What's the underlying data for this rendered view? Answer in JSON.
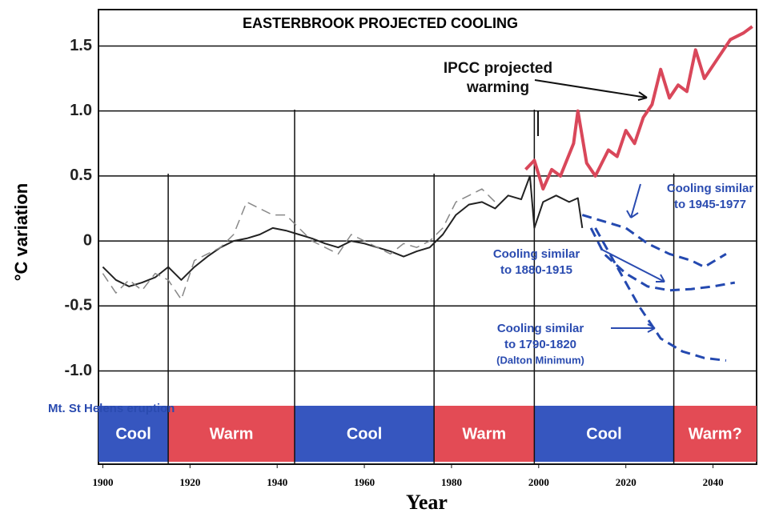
{
  "chart_data": {
    "type": "line",
    "title": "EASTERBROOK PROJECTED COOLING",
    "y_label": "°C variation",
    "x_label": "Year",
    "xlim": [
      1899,
      2050
    ],
    "xticks": [
      1900,
      1920,
      1940,
      1960,
      1980,
      2000,
      2020,
      2040
    ],
    "ylim": [
      -1.2,
      1.78
    ],
    "yticks": [
      1.5,
      1.0,
      0.5,
      0,
      -0.5,
      -1.0
    ],
    "ytick_labels": [
      "1.5",
      "1.0",
      "0.5",
      "0",
      "-0.5",
      "-1.0"
    ],
    "grid": true,
    "series": [
      {
        "color": "#222222",
        "dash": false,
        "width": 2,
        "x": [
          1900,
          1903,
          1906,
          1909,
          1912,
          1915,
          1918,
          1921,
          1924,
          1927,
          1930,
          1933,
          1936,
          1939,
          1942,
          1945,
          1948,
          1951,
          1954,
          1957,
          1960,
          1963,
          1966,
          1969,
          1972,
          1975,
          1978,
          1981,
          1984,
          1987,
          1990,
          1993,
          1996,
          1998,
          1999,
          2001,
          2004,
          2007,
          2009,
          2010
        ],
        "values": [
          -0.2,
          -0.3,
          -0.35,
          -0.32,
          -0.28,
          -0.2,
          -0.3,
          -0.2,
          -0.12,
          -0.05,
          0.0,
          0.02,
          0.05,
          0.1,
          0.08,
          0.05,
          0.02,
          -0.02,
          -0.05,
          0.0,
          -0.02,
          -0.05,
          -0.08,
          -0.12,
          -0.08,
          -0.05,
          0.05,
          0.2,
          0.28,
          0.3,
          0.25,
          0.35,
          0.32,
          0.5,
          0.1,
          0.3,
          0.35,
          0.3,
          0.33,
          0.1
        ]
      },
      {
        "color": "#888888",
        "dash": true,
        "width": 1.5,
        "x": [
          1900,
          1903,
          1906,
          1909,
          1912,
          1915,
          1918,
          1921,
          1924,
          1927,
          1930,
          1933,
          1936,
          1939,
          1942,
          1945,
          1948,
          1951,
          1954,
          1957,
          1960,
          1963,
          1966,
          1969,
          1972,
          1975,
          1978,
          1981,
          1984,
          1987,
          1990
        ],
        "values": [
          -0.25,
          -0.4,
          -0.3,
          -0.38,
          -0.25,
          -0.3,
          -0.45,
          -0.15,
          -0.1,
          -0.05,
          0.05,
          0.3,
          0.25,
          0.2,
          0.2,
          0.1,
          0.0,
          -0.05,
          -0.1,
          0.05,
          0.0,
          -0.05,
          -0.1,
          -0.02,
          -0.05,
          0.0,
          0.1,
          0.3,
          0.35,
          0.4,
          0.3
        ]
      },
      {
        "color": "#d9475a",
        "dash": false,
        "width": 4,
        "x": [
          1997,
          1999,
          2001,
          2003,
          2005,
          2008,
          2009,
          2011,
          2013,
          2016,
          2018,
          2020,
          2022,
          2024,
          2026,
          2028,
          2030,
          2032,
          2034,
          2036,
          2038,
          2041,
          2044,
          2047,
          2049
        ],
        "values": [
          0.55,
          0.62,
          0.4,
          0.55,
          0.5,
          0.75,
          1.0,
          0.6,
          0.5,
          0.7,
          0.65,
          0.85,
          0.75,
          0.95,
          1.05,
          1.32,
          1.1,
          1.2,
          1.15,
          1.47,
          1.25,
          1.4,
          1.55,
          1.6,
          1.65
        ]
      },
      {
        "color": "#2449b0",
        "dash": true,
        "width": 3,
        "x": [
          2010,
          2015,
          2020,
          2025,
          2030,
          2035,
          2038,
          2043
        ],
        "values": [
          0.2,
          0.15,
          0.1,
          -0.02,
          -0.1,
          -0.15,
          -0.2,
          -0.1
        ]
      },
      {
        "color": "#2449b0",
        "dash": true,
        "width": 3,
        "x": [
          2012,
          2015,
          2020,
          2025,
          2030,
          2035,
          2040,
          2045
        ],
        "values": [
          0.1,
          -0.1,
          -0.25,
          -0.35,
          -0.38,
          -0.37,
          -0.35,
          -0.32
        ]
      },
      {
        "color": "#2449b0",
        "dash": true,
        "width": 3,
        "x": [
          2013,
          2018,
          2023,
          2028,
          2033,
          2038,
          2043
        ],
        "values": [
          0.1,
          -0.2,
          -0.5,
          -0.75,
          -0.85,
          -0.9,
          -0.92
        ]
      }
    ],
    "phases": [
      {
        "label": "Cool",
        "start": 1899,
        "end": 1915,
        "color": "#3656bf"
      },
      {
        "label": "Warm",
        "start": 1915,
        "end": 1944,
        "color": "#e34b55"
      },
      {
        "label": "Cool",
        "start": 1944,
        "end": 1976,
        "color": "#3656bf"
      },
      {
        "label": "Warm",
        "start": 1976,
        "end": 1999,
        "color": "#e34b55"
      },
      {
        "label": "Cool",
        "start": 1999,
        "end": 2031,
        "color": "#3656bf"
      },
      {
        "label": "Warm?",
        "start": 2031,
        "end": 2050,
        "color": "#e34b55"
      }
    ],
    "annotations": [
      {
        "lines": [
          "IPCC projected",
          "warming"
        ]
      },
      {
        "lines": [
          "Cooling similar",
          "to 1945-1977"
        ]
      },
      {
        "lines": [
          "Cooling similar",
          "to 1880-1915"
        ]
      },
      {
        "lines": [
          "Cooling similar",
          "to 1790-1820",
          "(Dalton Minimum)"
        ]
      },
      {
        "lines": [
          "Mt. St Helens eruption"
        ]
      }
    ]
  }
}
